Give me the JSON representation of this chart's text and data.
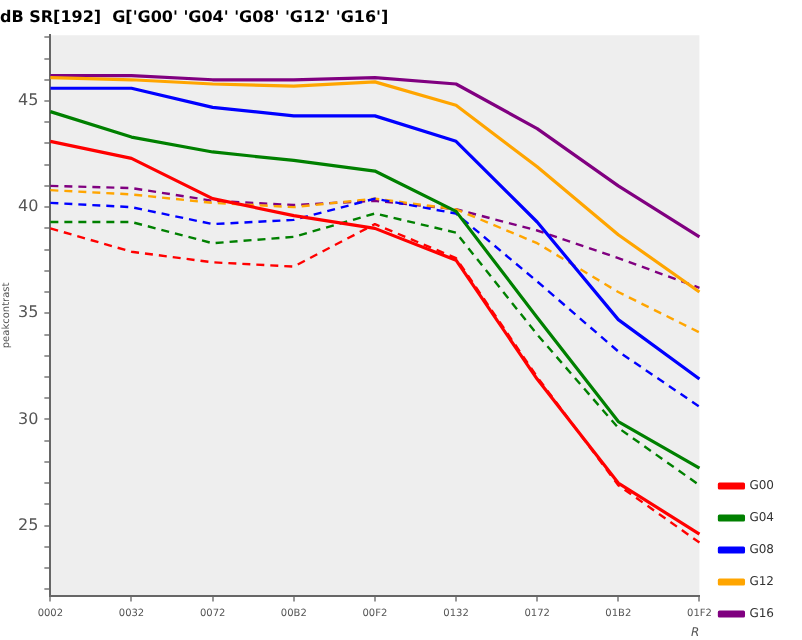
{
  "chart_data": {
    "type": "line",
    "title": "dB SR[192]  G['G00' 'G04' 'G08' 'G12' 'G16']",
    "xlabel": "R",
    "ylabel": "peakcontrast",
    "categories": [
      "0002",
      "0032",
      "0072",
      "00B2",
      "00F2",
      "0132",
      "0172",
      "01B2",
      "01F2"
    ],
    "series": [
      {
        "name": "G00",
        "color": "#ff0000",
        "values": [
          43.1,
          42.3,
          40.4,
          39.6,
          39.0,
          37.5,
          31.9,
          27.0,
          24.6
        ]
      },
      {
        "name": "G04",
        "color": "#008000",
        "values": [
          44.5,
          43.3,
          42.6,
          42.2,
          41.7,
          39.8,
          34.8,
          29.9,
          27.7
        ]
      },
      {
        "name": "G08",
        "color": "#0000ff",
        "values": [
          45.6,
          45.6,
          44.7,
          44.3,
          44.3,
          43.1,
          39.3,
          34.7,
          31.9
        ]
      },
      {
        "name": "G12",
        "color": "#ffa500",
        "values": [
          46.1,
          46.0,
          45.8,
          45.7,
          45.9,
          44.8,
          41.9,
          38.7,
          36.0
        ]
      },
      {
        "name": "G16",
        "color": "#800080",
        "values": [
          46.2,
          46.2,
          46.0,
          46.0,
          46.1,
          45.8,
          43.7,
          41.0,
          38.6
        ]
      },
      {
        "color": "#ff0000",
        "line_style": "dashed",
        "values": [
          39.0,
          37.9,
          37.4,
          37.2,
          39.2,
          37.6,
          32.0,
          26.9,
          24.2
        ]
      },
      {
        "color": "#008000",
        "line_style": "dashed",
        "values": [
          39.3,
          39.3,
          38.3,
          38.6,
          39.7,
          38.8,
          34.0,
          29.6,
          26.9
        ]
      },
      {
        "color": "#0000ff",
        "line_style": "dashed",
        "values": [
          40.2,
          40.0,
          39.2,
          39.4,
          40.4,
          39.7,
          36.5,
          33.2,
          30.6
        ]
      },
      {
        "color": "#ffa500",
        "line_style": "dashed",
        "values": [
          40.8,
          40.6,
          40.2,
          40.0,
          40.4,
          39.9,
          38.3,
          36.0,
          34.1
        ]
      },
      {
        "color": "#800080",
        "line_style": "dashed",
        "values": [
          41.0,
          40.9,
          40.3,
          40.1,
          40.3,
          39.9,
          38.9,
          37.6,
          36.2
        ]
      }
    ],
    "ylim": [
      21.7,
      48.1
    ],
    "yticks": [
      {
        "value": 22,
        "label": null
      },
      {
        "value": 23,
        "label": null
      },
      {
        "value": 24,
        "label": null
      },
      25,
      {
        "value": 26,
        "label": null
      },
      {
        "value": 27,
        "label": null
      },
      {
        "value": 28,
        "label": null
      },
      {
        "value": 29,
        "label": null
      },
      30,
      {
        "value": 31,
        "label": null
      },
      {
        "value": 32,
        "label": null
      },
      {
        "value": 33,
        "label": null
      },
      {
        "value": 34,
        "label": null
      },
      35,
      {
        "value": 36,
        "label": null
      },
      {
        "value": 37,
        "label": null
      },
      {
        "value": 38,
        "label": null
      },
      {
        "value": 39,
        "label": null
      },
      40,
      {
        "value": 41,
        "label": null
      },
      {
        "value": 42,
        "label": null
      },
      {
        "value": 43,
        "label": null
      },
      {
        "value": 44,
        "label": null
      },
      45,
      {
        "value": 46,
        "label": null
      },
      {
        "value": 47,
        "label": null
      },
      {
        "value": 48,
        "label": null
      }
    ],
    "grid": false,
    "legend": "bottom right",
    "marker": "none",
    "line_style": "solid"
  }
}
